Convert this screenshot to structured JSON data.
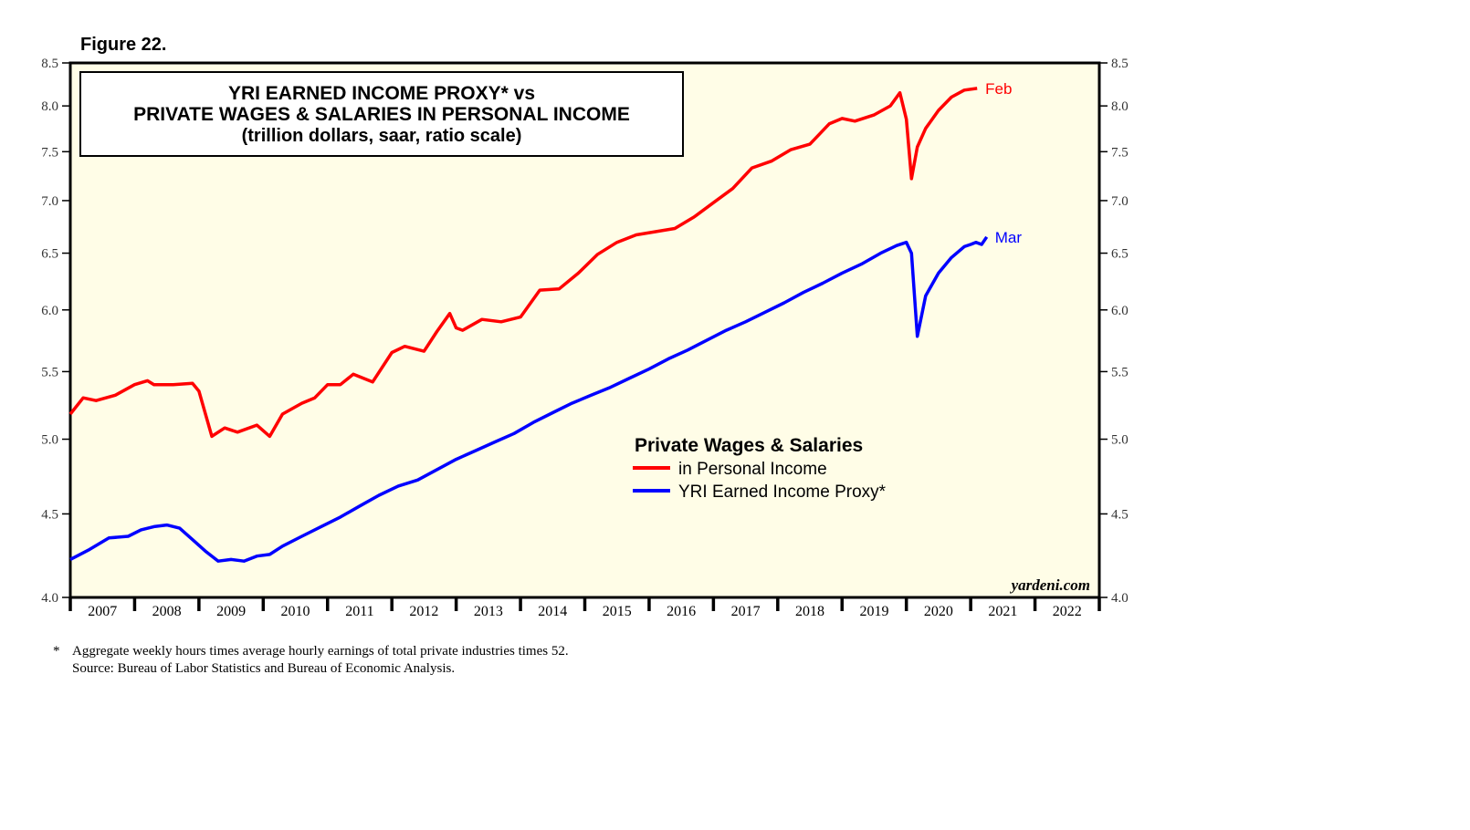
{
  "figure_label": "Figure 22.",
  "footnote": {
    "marker": "*",
    "line1": "Aggregate weekly hours times average hourly earnings of total private industries times 52.",
    "line2": "Source: Bureau of Labor Statistics and Bureau of Economic Analysis."
  },
  "chart_data": {
    "type": "line",
    "title": "YRI EARNED INCOME PROXY* vs",
    "title_line2": "PRIVATE WAGES & SALARIES IN PERSONAL INCOME",
    "subtitle": "(trillion dollars, saar, ratio scale)",
    "y_scale": "log",
    "ylim": [
      4.0,
      8.5
    ],
    "xlim": [
      2007.0,
      2023.0
    ],
    "y_ticks": [
      "4.0",
      "4.5",
      "5.0",
      "5.5",
      "6.0",
      "6.5",
      "7.0",
      "7.5",
      "8.0",
      "8.5"
    ],
    "x_tick_labels": [
      "2007",
      "2008",
      "2009",
      "2010",
      "2011",
      "2012",
      "2013",
      "2014",
      "2015",
      "2016",
      "2017",
      "2018",
      "2019",
      "2020",
      "2021",
      "2022"
    ],
    "legend_title": "Private Wages & Salaries",
    "watermark": "yardeni.com",
    "plot_background": "#fffde7",
    "series": [
      {
        "name": "in Personal Income",
        "end_label": "Feb",
        "color": "#ff0000",
        "x": [
          2007.0,
          2007.2,
          2007.4,
          2007.7,
          2008.0,
          2008.2,
          2008.3,
          2008.6,
          2008.9,
          2009.0,
          2009.2,
          2009.4,
          2009.6,
          2009.9,
          2010.1,
          2010.3,
          2010.6,
          2010.8,
          2011.0,
          2011.2,
          2011.4,
          2011.7,
          2012.0,
          2012.2,
          2012.5,
          2012.7,
          2012.9,
          2013.0,
          2013.1,
          2013.4,
          2013.7,
          2014.0,
          2014.3,
          2014.6,
          2014.9,
          2015.2,
          2015.5,
          2015.8,
          2016.1,
          2016.4,
          2016.7,
          2017.0,
          2017.3,
          2017.6,
          2017.9,
          2018.2,
          2018.5,
          2018.8,
          2019.0,
          2019.2,
          2019.5,
          2019.75,
          2019.9,
          2020.0,
          2020.08,
          2020.17,
          2020.3,
          2020.5,
          2020.7,
          2020.9,
          2021.1
        ],
        "values": [
          5.18,
          5.3,
          5.28,
          5.32,
          5.4,
          5.43,
          5.4,
          5.4,
          5.41,
          5.35,
          5.02,
          5.08,
          5.05,
          5.1,
          5.02,
          5.18,
          5.26,
          5.3,
          5.4,
          5.4,
          5.48,
          5.42,
          5.65,
          5.7,
          5.66,
          5.82,
          5.97,
          5.85,
          5.83,
          5.92,
          5.9,
          5.94,
          6.17,
          6.18,
          6.32,
          6.49,
          6.6,
          6.67,
          6.7,
          6.73,
          6.84,
          6.98,
          7.12,
          7.33,
          7.4,
          7.52,
          7.58,
          7.8,
          7.86,
          7.83,
          7.9,
          8.0,
          8.15,
          7.85,
          7.22,
          7.55,
          7.75,
          7.95,
          8.1,
          8.18,
          8.2
        ]
      },
      {
        "name": "YRI Earned Income Proxy*",
        "end_label": "Mar",
        "color": "#0000ff",
        "x": [
          2007.0,
          2007.3,
          2007.6,
          2007.9,
          2008.1,
          2008.3,
          2008.5,
          2008.7,
          2008.9,
          2009.1,
          2009.3,
          2009.5,
          2009.7,
          2009.9,
          2010.1,
          2010.3,
          2010.6,
          2010.9,
          2011.2,
          2011.5,
          2011.8,
          2012.1,
          2012.4,
          2012.7,
          2013.0,
          2013.3,
          2013.6,
          2013.9,
          2014.2,
          2014.5,
          2014.8,
          2015.1,
          2015.4,
          2015.7,
          2016.0,
          2016.3,
          2016.6,
          2016.9,
          2017.2,
          2017.5,
          2017.8,
          2018.1,
          2018.4,
          2018.7,
          2019.0,
          2019.3,
          2019.6,
          2019.85,
          2020.0,
          2020.08,
          2020.17,
          2020.3,
          2020.5,
          2020.7,
          2020.9,
          2021.0,
          2021.08,
          2021.17,
          2021.25
        ],
        "values": [
          4.22,
          4.28,
          4.35,
          4.36,
          4.4,
          4.42,
          4.43,
          4.41,
          4.34,
          4.27,
          4.21,
          4.22,
          4.21,
          4.24,
          4.25,
          4.3,
          4.36,
          4.42,
          4.48,
          4.55,
          4.62,
          4.68,
          4.72,
          4.79,
          4.86,
          4.92,
          4.98,
          5.04,
          5.12,
          5.19,
          5.26,
          5.32,
          5.38,
          5.45,
          5.52,
          5.6,
          5.67,
          5.75,
          5.83,
          5.9,
          5.98,
          6.06,
          6.15,
          6.23,
          6.32,
          6.4,
          6.5,
          6.57,
          6.6,
          6.5,
          5.78,
          6.12,
          6.32,
          6.46,
          6.56,
          6.58,
          6.6,
          6.58,
          6.65
        ]
      }
    ]
  }
}
